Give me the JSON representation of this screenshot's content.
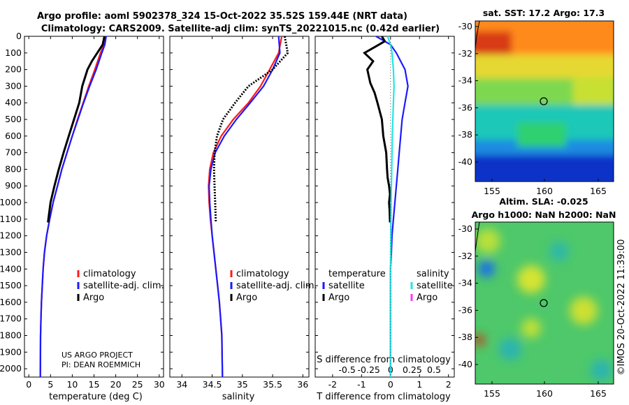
{
  "title": {
    "line1": "Argo profile: aoml 5902378_324 15-Oct-2022 35.52S 159.44E (NRT data)",
    "line2": "Climatology: CARS2009. Satellite-adj clim: synTS_20221015.nc (0.42d earlier)"
  },
  "colors": {
    "climatology": "#ff1a1a",
    "satellite": "#1a1aff",
    "argo": "#000000",
    "salinity_sat": "#22e6e6",
    "salinity_argo": "#ff33ff"
  },
  "chart_data": [
    {
      "type": "line",
      "name": "temperature",
      "xlabel": "temperature (deg C)",
      "ylabel": "",
      "xlim": [
        -1,
        31
      ],
      "ylim": [
        2050,
        0
      ],
      "xticks": [
        "0",
        "5",
        "10",
        "15",
        "20",
        "25",
        "30"
      ],
      "yticks": [
        "0",
        "100",
        "200",
        "300",
        "400",
        "500",
        "600",
        "700",
        "800",
        "900",
        "1000",
        "1100",
        "1200",
        "1300",
        "1400",
        "1500",
        "1600",
        "1700",
        "1800",
        "1900",
        "2000"
      ],
      "grid": false,
      "legend": {
        "position": "lower-right",
        "entries": [
          "climatology",
          "satellite-adj. clim.",
          "Argo"
        ]
      },
      "annotation": [
        "US ARGO PROJECT",
        "PI: DEAN ROEMMICH"
      ],
      "series": [
        {
          "name": "climatology",
          "x": [
            17.5,
            17.3,
            16.5,
            15.2,
            13.8,
            12.5,
            11.2,
            10,
            8.8,
            7.6,
            6.6,
            5.6,
            4.8,
            4.1,
            3.6,
            3.3,
            3.1,
            2.9,
            2.8,
            2.7,
            2.65
          ],
          "y": [
            0,
            50,
            100,
            200,
            300,
            400,
            500,
            600,
            700,
            800,
            900,
            1000,
            1100,
            1200,
            1300,
            1400,
            1500,
            1600,
            1700,
            1800,
            2050
          ]
        },
        {
          "name": "satellite-adj. clim.",
          "x": [
            17.8,
            17.5,
            16.8,
            15.5,
            14,
            12.6,
            11.3,
            10,
            8.8,
            7.6,
            6.6,
            5.6,
            4.8,
            4.1,
            3.6,
            3.3,
            3.1,
            2.9,
            2.8,
            2.7,
            2.65
          ],
          "y": [
            0,
            50,
            100,
            200,
            300,
            400,
            500,
            600,
            700,
            800,
            900,
            1000,
            1100,
            1200,
            1300,
            1400,
            1500,
            1600,
            1700,
            1800,
            2050
          ]
        },
        {
          "name": "Argo",
          "x": [
            17.4,
            17,
            14.5,
            13.5,
            12.3,
            11.6,
            10.4,
            9.2,
            8,
            6.9,
            5.9,
            5,
            4.4
          ],
          "y": [
            0,
            50,
            150,
            200,
            300,
            400,
            500,
            600,
            700,
            800,
            900,
            1000,
            1120
          ]
        }
      ]
    },
    {
      "type": "line",
      "name": "salinity",
      "xlabel": "salinity",
      "ylabel": "",
      "xlim": [
        33.8,
        36.1
      ],
      "ylim": [
        2050,
        0
      ],
      "xticks": [
        "34",
        "34.5",
        "35",
        "35.5",
        "36"
      ],
      "grid": false,
      "legend": {
        "position": "lower-right",
        "entries": [
          "climatology",
          "satellite-adj. clim.",
          "Argo"
        ]
      },
      "series": [
        {
          "name": "climatology",
          "x": [
            35.65,
            35.6,
            35.45,
            35.3,
            35.1,
            34.85,
            34.65,
            34.52,
            34.46,
            34.44,
            34.45,
            34.47,
            34.5,
            34.53,
            34.56,
            34.59,
            34.62,
            34.64,
            34.66,
            34.67
          ],
          "y": [
            0,
            100,
            200,
            300,
            400,
            500,
            600,
            700,
            800,
            900,
            1000,
            1100,
            1200,
            1300,
            1400,
            1500,
            1600,
            1700,
            1800,
            2050
          ]
        },
        {
          "name": "satellite-adj. clim.",
          "x": [
            35.6,
            35.62,
            35.5,
            35.35,
            35.13,
            34.9,
            34.7,
            34.55,
            34.48,
            34.45,
            34.46,
            34.48,
            34.5,
            34.53,
            34.56,
            34.59,
            34.62,
            34.64,
            34.66,
            34.67
          ],
          "y": [
            0,
            100,
            200,
            300,
            400,
            500,
            600,
            700,
            800,
            900,
            1000,
            1100,
            1200,
            1300,
            1400,
            1500,
            1600,
            1700,
            1800,
            2050
          ]
        },
        {
          "name": "Argo",
          "x": [
            35.7,
            35.75,
            35.5,
            35.1,
            34.88,
            34.68,
            34.58,
            34.54,
            34.53,
            34.54,
            34.55,
            34.56
          ],
          "y": [
            0,
            100,
            200,
            300,
            400,
            500,
            600,
            700,
            800,
            900,
            1000,
            1120
          ]
        }
      ]
    },
    {
      "type": "line",
      "name": "difference",
      "xlabel": "T difference from climatology",
      "xlabel_top": "S difference from climatology",
      "xlim": [
        -2.6,
        2.2
      ],
      "ylim": [
        2050,
        0
      ],
      "xticks": [
        "-2",
        "-1",
        "0",
        "1",
        "2"
      ],
      "xticks_s": [
        "-0.5",
        "-0.25",
        "0",
        "0.25",
        "0.5"
      ],
      "grid": false,
      "legend": {
        "position": "lower",
        "headers": [
          "temperature",
          "salinity"
        ],
        "entries_temperature": [
          "satellite",
          "Argo"
        ],
        "entries_salinity": [
          "satellite",
          "Argo"
        ]
      },
      "series": [
        {
          "name": "temperature satellite",
          "x": [
            -0.5,
            0,
            0.2,
            0.5,
            0.6,
            0.5,
            0.4,
            0.35,
            0.3,
            0.25,
            0.2,
            0.15,
            0.1,
            0.05,
            0.03,
            0,
            0,
            0,
            0
          ],
          "y": [
            0,
            50,
            100,
            200,
            300,
            400,
            500,
            600,
            700,
            800,
            900,
            1000,
            1100,
            1200,
            1300,
            1400,
            1600,
            1800,
            2050
          ]
        },
        {
          "name": "temperature Argo",
          "x": [
            -0.3,
            -0.2,
            -0.4,
            -0.9,
            -0.6,
            -0.8,
            -0.7,
            -0.55,
            -0.45,
            -0.3,
            -0.25,
            -0.15,
            -0.12,
            -0.1,
            -0.05,
            -0.02,
            -0.05,
            -0.03,
            -0.02
          ],
          "y": [
            0,
            30,
            50,
            100,
            150,
            200,
            280,
            340,
            400,
            500,
            600,
            700,
            800,
            850,
            900,
            950,
            1000,
            1050,
            1120
          ]
        },
        {
          "name": "salinity satellite",
          "x": [
            -0.1,
            0,
            0.05,
            0.1,
            0.12,
            0.1,
            0.08,
            0.06,
            0.05,
            0.04,
            0.03,
            0.02,
            0.01,
            0,
            0,
            0
          ],
          "y": [
            0,
            50,
            100,
            200,
            300,
            400,
            500,
            600,
            700,
            800,
            900,
            1000,
            1200,
            1400,
            1600,
            2050
          ]
        },
        {
          "name": "salinity Argo",
          "x": [],
          "y": []
        }
      ]
    }
  ],
  "maps": {
    "sst": {
      "title": "sat. SST: 17.2 Argo: 17.3",
      "xticks": [
        "155",
        "160",
        "165"
      ],
      "yticks": [
        "-30",
        "-32",
        "-34",
        "-36",
        "-38",
        "-40"
      ]
    },
    "sla": {
      "title1": "Altim. SLA: -0.025",
      "title2": "Argo h1000: NaN h2000: NaN",
      "xticks": [
        "155",
        "160",
        "165"
      ],
      "yticks": [
        "-30",
        "-32",
        "-34",
        "-36",
        "-38",
        "-40"
      ]
    }
  },
  "credit": "©IMOS 20-Oct-2022 11:39:00"
}
